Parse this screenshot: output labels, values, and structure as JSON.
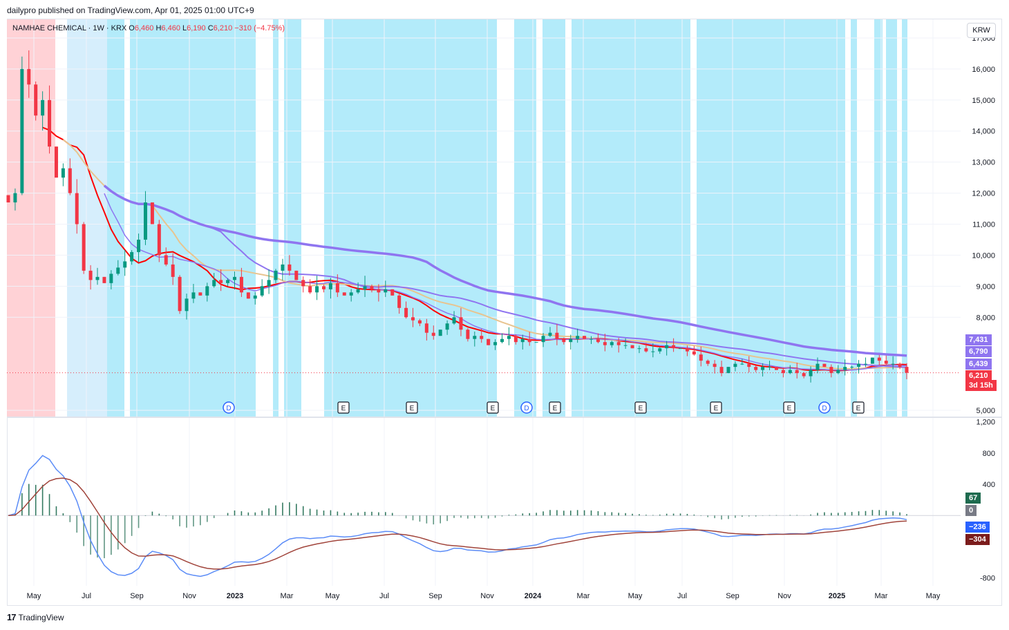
{
  "header": {
    "published_by": "dailypro published on TradingView.com, Apr 01, 2025 01:00 UTC+9"
  },
  "legend": {
    "symbol": "NAMHAE CHEMICAL · 1W · KRX",
    "open_label": "O",
    "open": "6,460",
    "high_label": "H",
    "high": "6,460",
    "low_label": "L",
    "low": "6,190",
    "close_label": "C",
    "close": "6,210",
    "change": "−310 (−4.75%)"
  },
  "currency_button": "KRW",
  "price_axis": {
    "labels": [
      "17,000",
      "16,000",
      "15,000",
      "14,000",
      "13,000",
      "12,000",
      "11,000",
      "10,000",
      "9,000",
      "8,000",
      "5,000"
    ]
  },
  "price_tags": [
    {
      "text": "7,431",
      "color": "#8f75f0"
    },
    {
      "text": "6,790",
      "color": "#8f75f0"
    },
    {
      "text": "6,439",
      "color": "#8f75f0"
    },
    {
      "text": "6,210",
      "color": "#f23645"
    },
    {
      "text": "3d 15h",
      "color": "#f23645"
    }
  ],
  "macd_axis": {
    "labels": [
      "1,200",
      "800",
      "400",
      "-800"
    ]
  },
  "macd_tags": [
    {
      "text": "67",
      "color": "#1e6b4f"
    },
    {
      "text": "0",
      "color": "#787b86"
    },
    {
      "text": "−236",
      "color": "#2962ff"
    },
    {
      "text": "−304",
      "color": "#7b1c1c"
    }
  ],
  "time_axis": {
    "labels": [
      "May",
      "Jul",
      "Sep",
      "Nov",
      "2023",
      "Mar",
      "May",
      "Jul",
      "Sep",
      "Nov",
      "2024",
      "Mar",
      "May",
      "Jul",
      "Sep",
      "Nov",
      "2025",
      "Mar",
      "May"
    ]
  },
  "event_markers": [
    {
      "type": "D"
    },
    {
      "type": "E"
    },
    {
      "type": "E"
    },
    {
      "type": "E"
    },
    {
      "type": "D"
    },
    {
      "type": "E"
    },
    {
      "type": "E"
    },
    {
      "type": "E"
    },
    {
      "type": "E"
    },
    {
      "type": "D"
    },
    {
      "type": "E"
    }
  ],
  "footer": {
    "brand": "TradingView"
  },
  "chart_data": {
    "type": "candlestick",
    "interval": "1W",
    "currency": "KRW",
    "price_range": [
      4800,
      17600
    ],
    "close_series_approx": [
      11700,
      12000,
      16000,
      15500,
      14500,
      15000,
      13500,
      12500,
      12800,
      12000,
      11000,
      9500,
      9200,
      9300,
      9100,
      9400,
      9600,
      9800,
      10100,
      10500,
      11700,
      11000,
      10000,
      9700,
      9300,
      8200,
      8600,
      8800,
      8700,
      9000,
      9200,
      9100,
      9200,
      9300,
      8800,
      8600,
      8700,
      9000,
      9200,
      9500,
      9700,
      9500,
      9200,
      9000,
      8800,
      9000,
      8900,
      9100,
      8800,
      8700,
      8800,
      8900,
      9000,
      8900,
      8800,
      8900,
      8700,
      8300,
      8000,
      7900,
      7800,
      7500,
      7400,
      7600,
      7800,
      8000,
      7600,
      7300,
      7400,
      7300,
      7100,
      7200,
      7300,
      7400,
      7200,
      7300,
      7200,
      7200,
      7400,
      7500,
      7300,
      7200,
      7300,
      7400,
      7300,
      7300,
      7200,
      7100,
      7200,
      7100,
      7100,
      7000,
      7000,
      6900,
      6900,
      7000,
      7100,
      7000,
      7000,
      6900,
      6800,
      6600,
      6500,
      6400,
      6200,
      6400,
      6500,
      6500,
      6400,
      6300,
      6400,
      6400,
      6300,
      6200,
      6300,
      6200,
      6100,
      6300,
      6500,
      6400,
      6200,
      6300,
      6400,
      6400,
      6500,
      6500,
      6700,
      6600,
      6500,
      6500,
      6400,
      6210
    ],
    "moving_averages": [
      {
        "last": 7431,
        "color": "#8f75f0"
      },
      {
        "last": 6790,
        "color": "#8f75f0"
      },
      {
        "last": 6439,
        "color": "#8f75f0"
      }
    ],
    "macd": {
      "histogram_last": 67,
      "macd_last": -236,
      "signal_last": -304,
      "range": [
        -900,
        1250
      ]
    }
  }
}
